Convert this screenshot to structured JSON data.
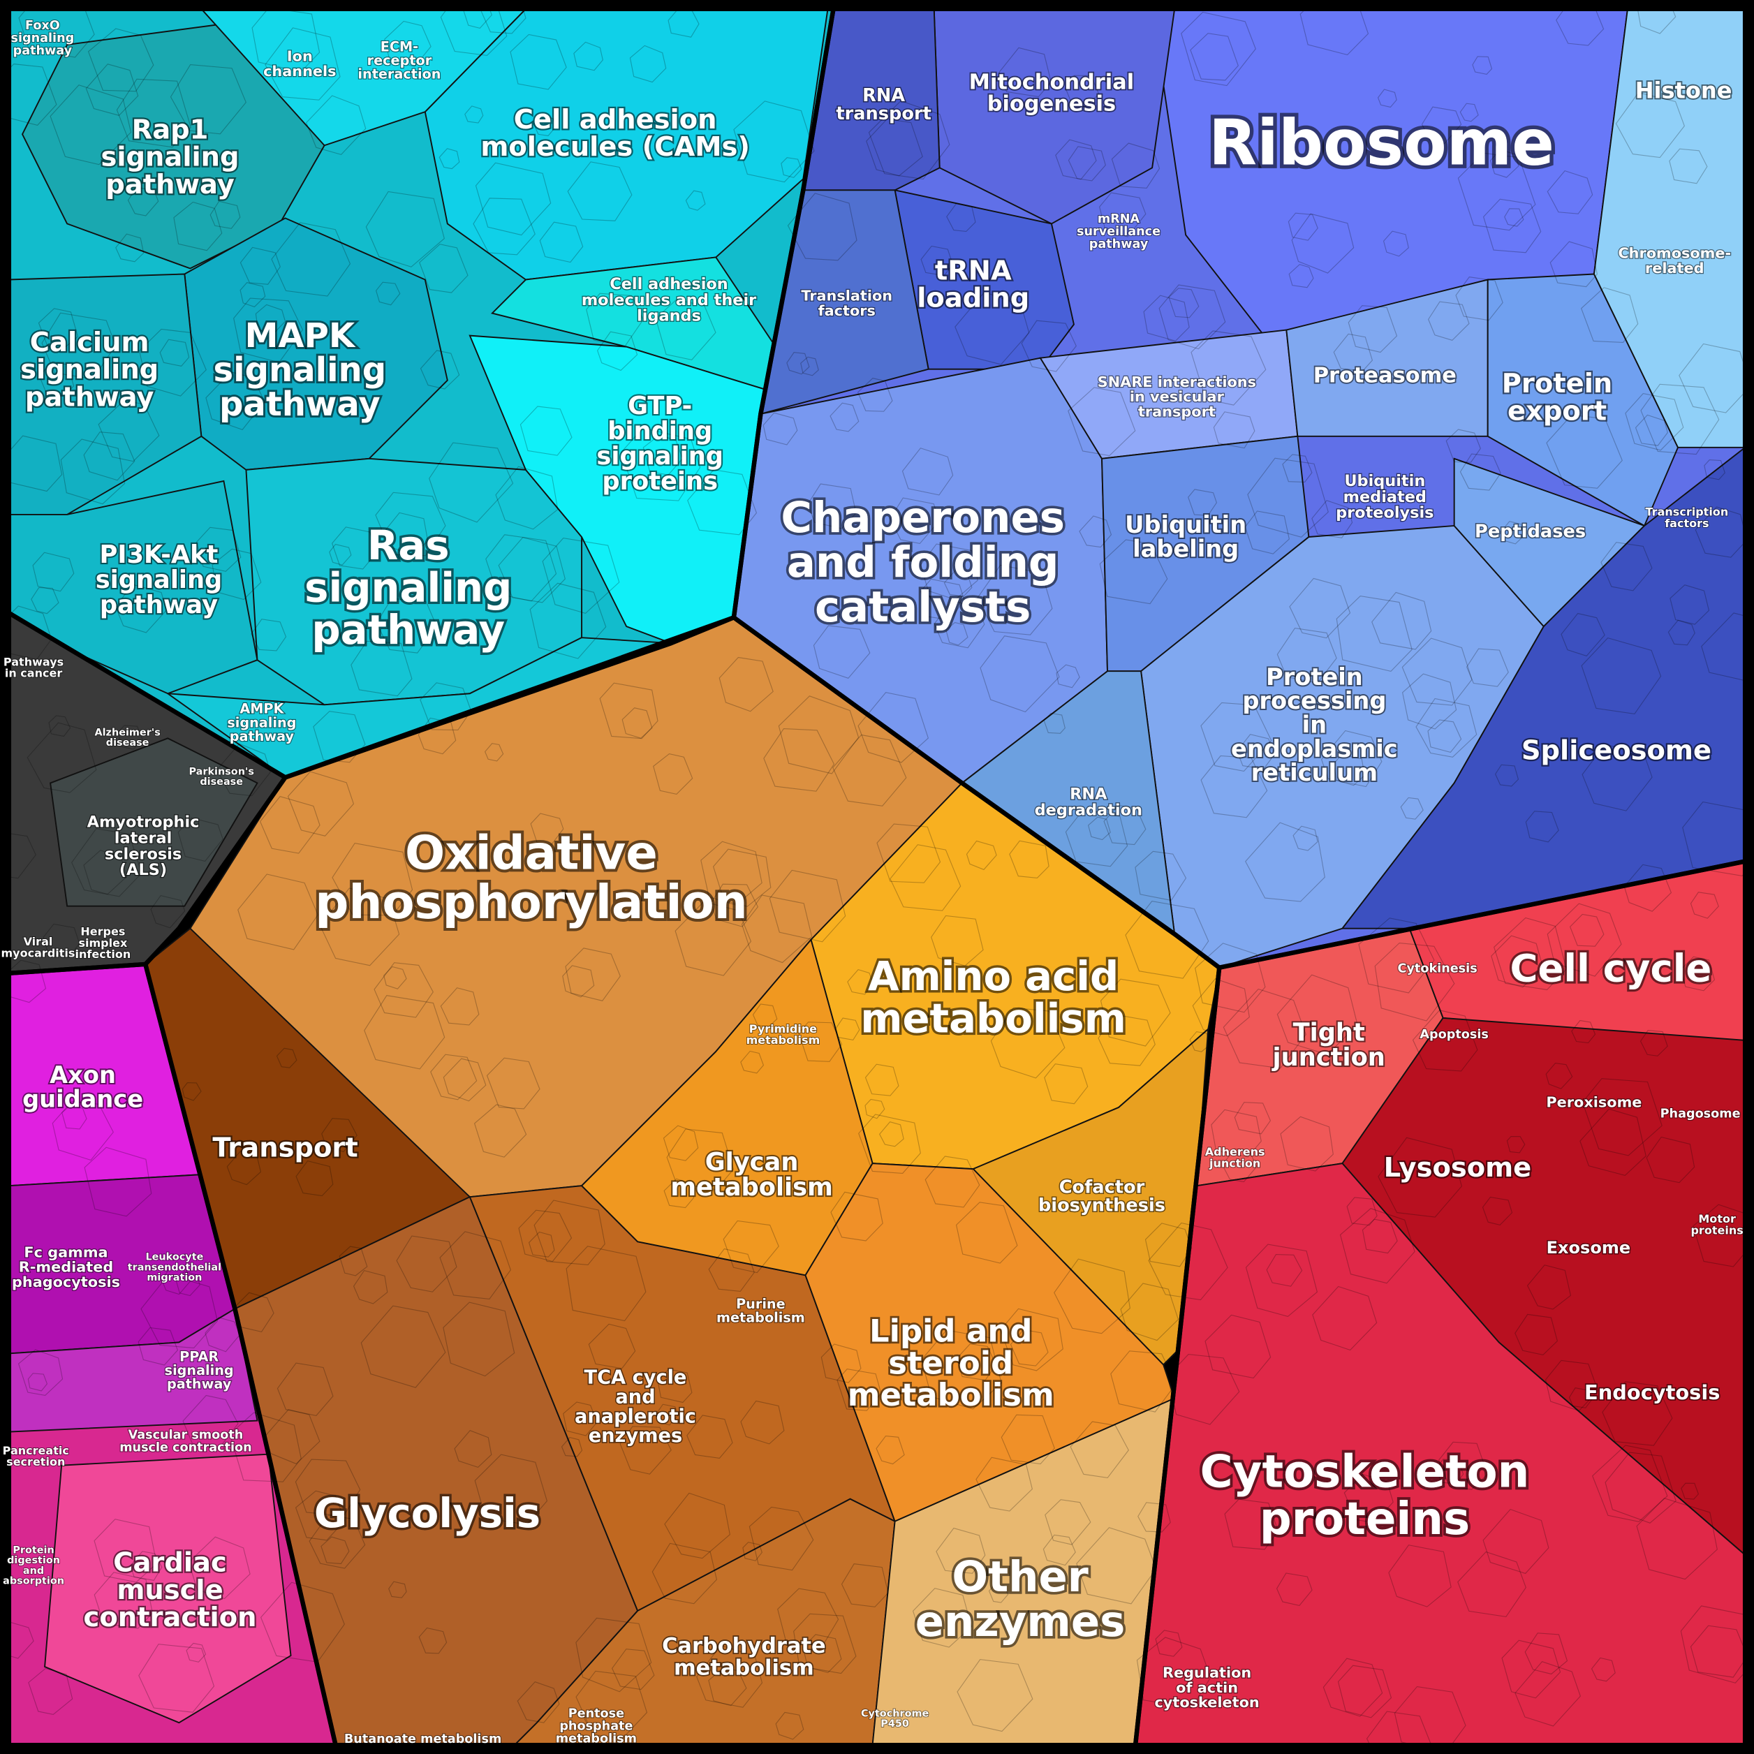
{
  "labels": [
    [
      "Ribosome"
    ],
    [
      "Oxidative",
      "phosphorylation"
    ],
    [
      "Cytoskeleton",
      "proteins"
    ],
    [
      "Chaperones",
      "and folding",
      "catalysts"
    ],
    [
      "Ras",
      "signaling",
      "pathway"
    ],
    [
      "Amino acid",
      "metabolism"
    ],
    [
      "Other",
      "enzymes"
    ],
    [
      "Glycolysis"
    ],
    [
      "Cell cycle"
    ],
    [
      "Spliceosome"
    ],
    [
      "MAPK",
      "signaling",
      "pathway"
    ],
    [
      "Calcium",
      "signaling",
      "pathway"
    ],
    [
      "Rap1",
      "signaling",
      "pathway"
    ],
    [
      "PI3K-Akt",
      "signaling",
      "pathway"
    ],
    [
      "Cell adhesion",
      "molecules (CAMs)"
    ],
    [
      "GTP-",
      "binding",
      "signaling",
      "proteins"
    ],
    [
      "Lysosome"
    ],
    [
      "Transport"
    ],
    [
      "Glycan",
      "metabolism"
    ],
    [
      "Lipid and",
      "steroid",
      "metabolism"
    ],
    [
      "TCA cycle",
      "and",
      "anaplerotic",
      "enzymes"
    ],
    [
      "Carbohydrate",
      "metabolism"
    ],
    [
      "Cardiac",
      "muscle",
      "contraction"
    ],
    [
      "Axon",
      "guidance"
    ],
    [
      "Tight",
      "junction"
    ],
    [
      "Protein",
      "export"
    ],
    [
      "Proteasome"
    ],
    [
      "Histone"
    ],
    [
      "Mitochondrial",
      "biogenesis"
    ],
    [
      "RNA",
      "transport"
    ],
    [
      "tRNA",
      "loading"
    ],
    [
      "Translation",
      "factors"
    ],
    [
      "Ubiquitin",
      "labeling"
    ],
    [
      "Protein",
      "processing",
      "in",
      "endoplasmic",
      "reticulum"
    ],
    [
      "Peptidases"
    ],
    [
      "Endocytosis"
    ],
    [
      "Peroxisome"
    ],
    [
      "Exosome"
    ],
    [
      "Phagosome"
    ],
    [
      "Cofactor",
      "biosynthesis"
    ],
    [
      "Amyotrophic",
      "lateral",
      "sclerosis",
      "(ALS)"
    ],
    [
      "Fc gamma",
      "R-mediated",
      "phagocytosis"
    ],
    [
      "RNA",
      "degradation"
    ],
    [
      "SNARE interactions",
      "in vesicular",
      "transport"
    ],
    [
      "Ubiquitin",
      "mediated",
      "proteolysis"
    ],
    [
      "Chromosome-",
      "related"
    ],
    [
      "Cell adhesion",
      "molecules and their",
      "ligands"
    ],
    [
      "ECM-",
      "receptor",
      "interaction"
    ],
    [
      "Ion",
      "channels"
    ],
    [
      "mRNA",
      "surveillance",
      "pathway"
    ],
    [
      "Regulation",
      "of actin",
      "cytoskeleton"
    ],
    [
      "Pentose",
      "phosphate",
      "metabolism"
    ],
    [
      "Butanoate metabolism"
    ],
    [
      "Purine",
      "metabolism"
    ],
    [
      "Pyrimidine",
      "metabolism"
    ],
    [
      "AMPK",
      "signaling",
      "pathway"
    ],
    [
      "Cytokinesis"
    ],
    [
      "Apoptosis"
    ],
    [
      "FoxO",
      "signaling",
      "pathway"
    ],
    [
      "Pancreatic",
      "secretion"
    ],
    [
      "Protein",
      "digestion",
      "and",
      "absorption"
    ],
    [
      "PPAR",
      "signaling",
      "pathway"
    ],
    [
      "Vascular smooth",
      "muscle contraction"
    ],
    [
      "Leukocyte",
      "transendothelial",
      "migration"
    ],
    [
      "Viral",
      "myocarditis"
    ],
    [
      "Herpes",
      "simplex",
      "infection"
    ],
    [
      "Pathways",
      "in cancer"
    ],
    [
      "Alzheimer's",
      "disease"
    ],
    [
      "Parkinson's",
      "disease"
    ],
    [
      "Transcription",
      "factors"
    ],
    [
      "Motor",
      "proteins"
    ],
    [
      "Cytochrome",
      "P450"
    ],
    [
      "Adherens",
      "junction"
    ]
  ]
}
